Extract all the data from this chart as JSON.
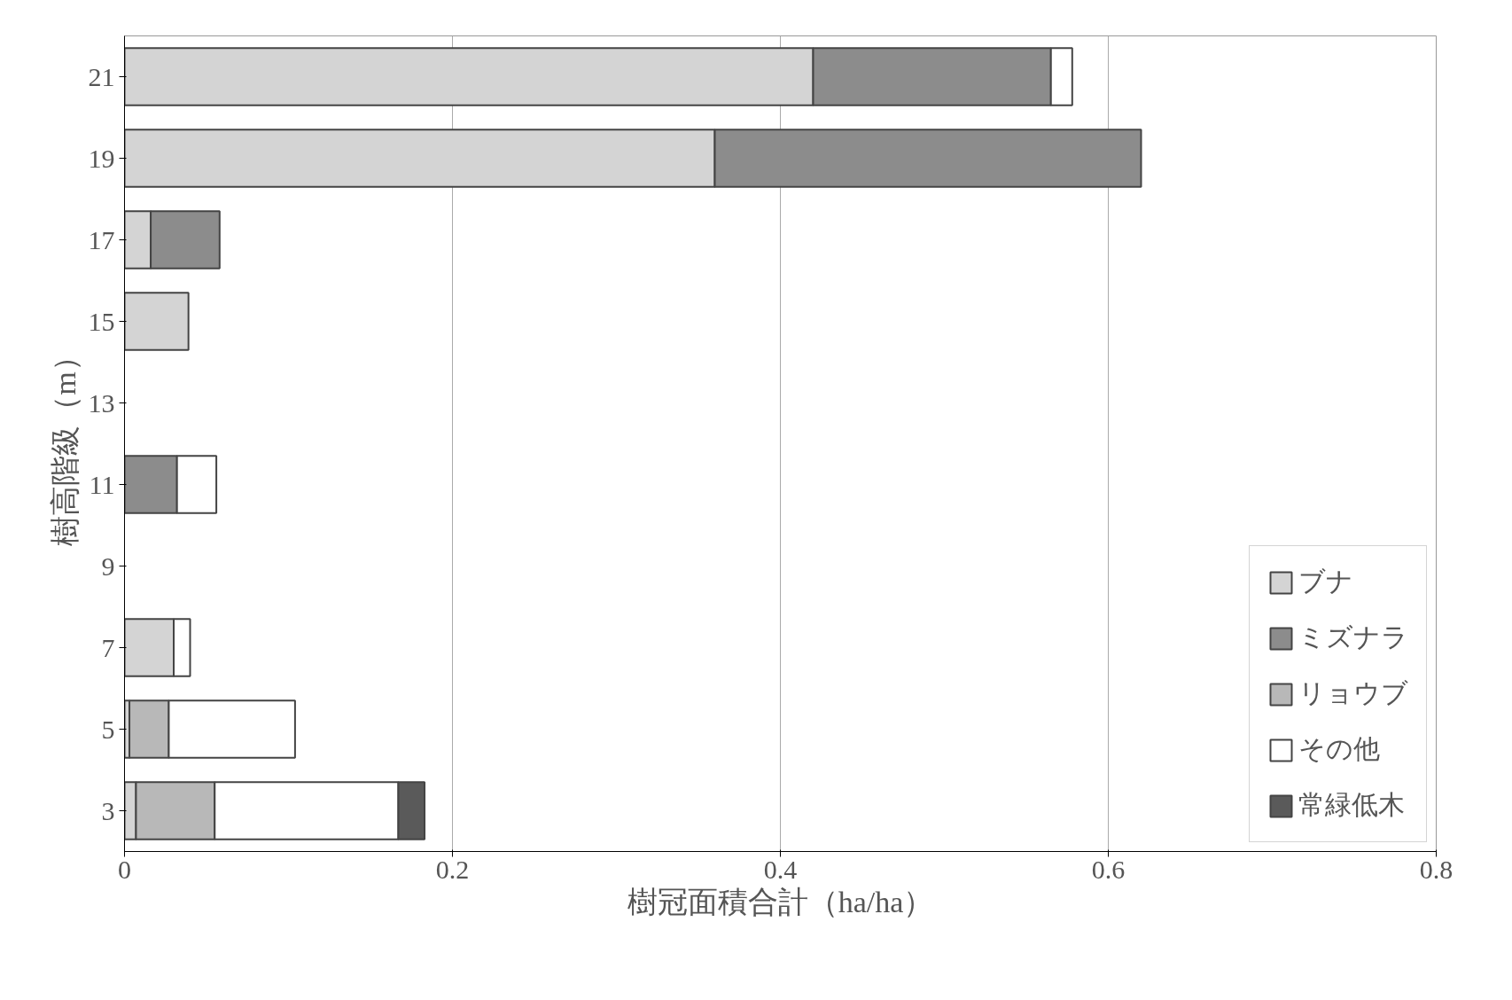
{
  "chart_data": {
    "type": "bar",
    "orientation": "horizontal",
    "stacked": true,
    "xlabel": "樹冠面積合計（ha/ha）",
    "ylabel": "樹高階級（m）",
    "categories": [
      "21",
      "19",
      "17",
      "15",
      "13",
      "11",
      "9",
      "7",
      "5",
      "3"
    ],
    "series": [
      {
        "name": "ブナ",
        "color": "#d4d4d4",
        "values": [
          0.42,
          0.36,
          0.016,
          0.039,
          null,
          null,
          null,
          0.03,
          0.003,
          0.007
        ]
      },
      {
        "name": "ミズナラ",
        "color": "#8c8c8c",
        "values": [
          0.145,
          0.26,
          0.042,
          null,
          null,
          0.032,
          null,
          null,
          null,
          null
        ]
      },
      {
        "name": "リョウブ",
        "color": "#b8b8b8",
        "values": [
          null,
          null,
          null,
          null,
          null,
          null,
          null,
          null,
          0.024,
          0.048
        ]
      },
      {
        "name": "その他",
        "color": "#ffffff",
        "values": [
          0.013,
          null,
          null,
          null,
          null,
          0.024,
          null,
          0.01,
          0.077,
          0.112
        ]
      },
      {
        "name": "常緑低木",
        "color": "#5a5a5a",
        "values": [
          null,
          null,
          null,
          null,
          null,
          null,
          null,
          null,
          null,
          0.016
        ]
      }
    ],
    "xlim": [
      0,
      0.8
    ],
    "xticks": [
      0,
      0.2,
      0.4,
      0.6,
      0.8
    ],
    "grid": "x",
    "legend": "bottom right"
  }
}
